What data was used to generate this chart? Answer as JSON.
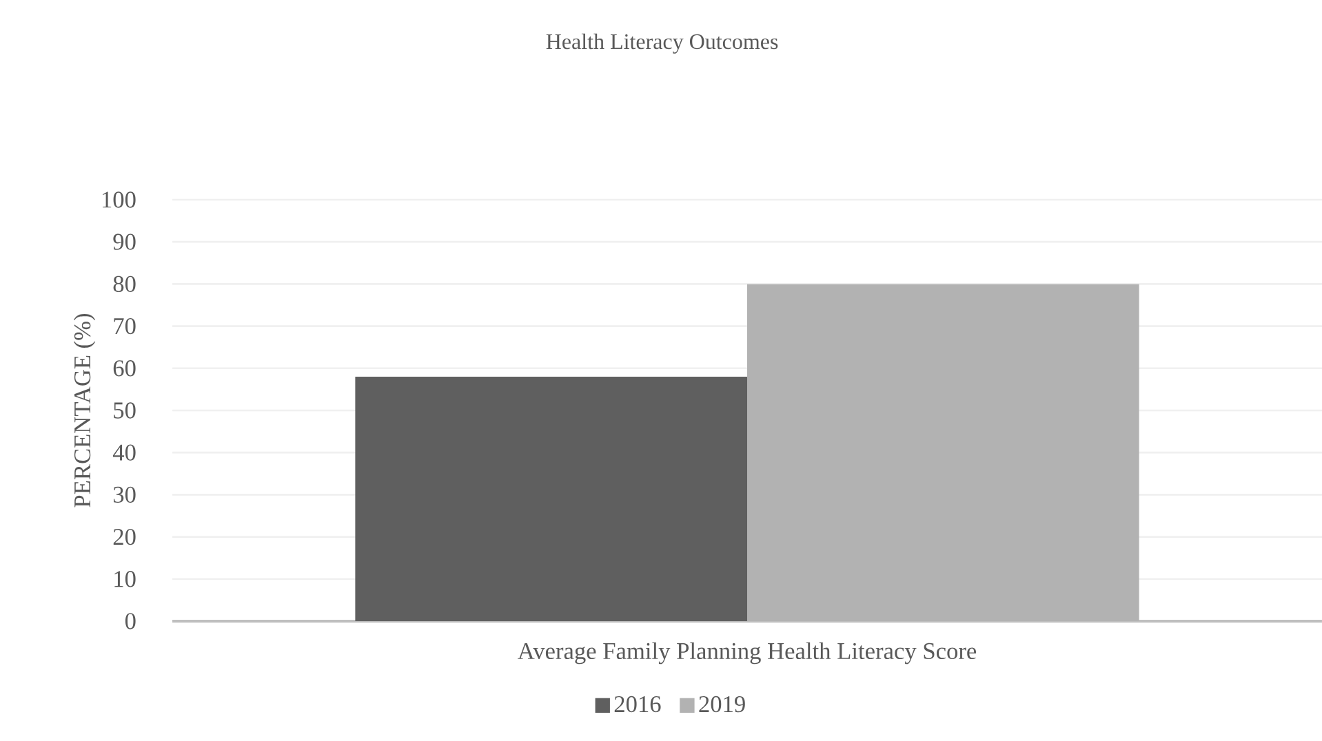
{
  "chart_data": {
    "type": "bar",
    "title": "Health Literacy Outcomes",
    "ylabel": "PERCENTAGE (%)",
    "categories": [
      "Average Family Planning Health Literacy Score"
    ],
    "series": [
      {
        "name": "2016",
        "color": "#5f5f5f",
        "values": [
          58
        ]
      },
      {
        "name": "2019",
        "color": "#b2b2b2",
        "values": [
          80
        ]
      }
    ],
    "ylim": [
      0,
      100
    ],
    "yticks": [
      0,
      10,
      20,
      30,
      40,
      50,
      60,
      70,
      80,
      90,
      100
    ],
    "grid": "y",
    "legend": "bottom"
  }
}
